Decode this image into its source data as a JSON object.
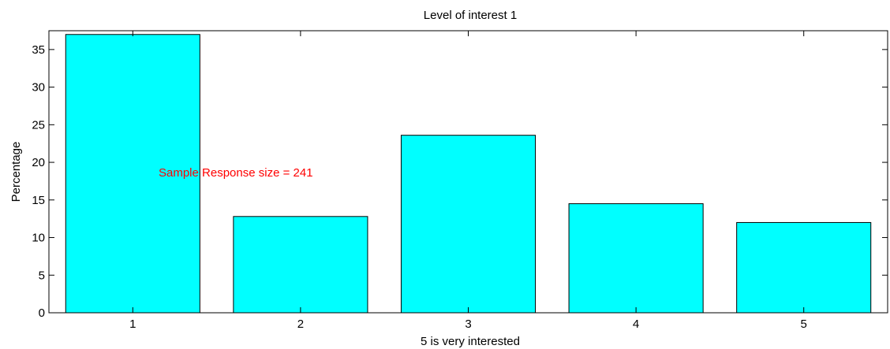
{
  "chart_data": {
    "type": "bar",
    "title": "Level of interest 1",
    "xlabel": "5 is very interested",
    "ylabel": "Percentage",
    "categories": [
      "1",
      "2",
      "3",
      "4",
      "5"
    ],
    "values": [
      37.0,
      12.8,
      23.6,
      14.5,
      12.0
    ],
    "xlim": [
      0.5,
      5.5
    ],
    "ylim": [
      0,
      37.5
    ],
    "yticks": [
      0,
      5,
      10,
      15,
      20,
      25,
      30,
      35
    ],
    "annotation": "Sample Response size = 241",
    "bar_color": "#00ffff",
    "annotation_color": "#ff0000",
    "grid": false
  }
}
